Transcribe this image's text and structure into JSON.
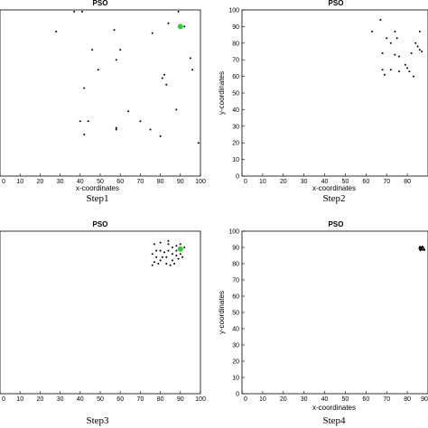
{
  "chart_data": [
    {
      "type": "scatter",
      "title": "PSO",
      "caption": "Step1",
      "xlabel": "x-coordinates",
      "ylabel": "",
      "xlim": [
        0,
        100
      ],
      "ylim": [
        0,
        100
      ],
      "xticks": [
        0,
        10,
        20,
        30,
        40,
        50,
        60,
        70,
        80,
        90,
        100
      ],
      "yticks": [],
      "grid": false,
      "series": [
        {
          "color": "#000000",
          "points": [
            [
              37,
              99
            ],
            [
              41,
              99
            ],
            [
              28,
              87
            ],
            [
              46,
              76
            ],
            [
              49,
              64
            ],
            [
              42,
              53
            ],
            [
              57,
              88
            ],
            [
              60,
              76
            ],
            [
              58,
              70
            ],
            [
              76,
              86
            ],
            [
              84,
              92
            ],
            [
              89,
              99
            ],
            [
              92,
              90
            ],
            [
              95,
              71
            ],
            [
              96,
              64
            ],
            [
              82,
              61
            ],
            [
              81,
              59
            ],
            [
              83,
              55
            ],
            [
              64,
              39
            ],
            [
              70,
              33
            ],
            [
              75,
              28
            ],
            [
              88,
              40
            ],
            [
              58,
              29
            ],
            [
              40,
              33
            ],
            [
              44,
              33
            ],
            [
              42,
              25
            ],
            [
              58,
              28
            ],
            [
              80,
              24
            ],
            [
              99,
              20
            ]
          ]
        },
        {
          "color": "#33cc33",
          "points": [
            [
              90,
              90
            ]
          ]
        }
      ]
    },
    {
      "type": "scatter",
      "title": "PSO",
      "caption": "Step2",
      "xlabel": "x-coordinates",
      "ylabel": "y-coordinates",
      "xlim": [
        0,
        90
      ],
      "ylim": [
        0,
        100
      ],
      "xticks": [
        0,
        10,
        20,
        30,
        40,
        50,
        60,
        70,
        80
      ],
      "yticks": [
        0,
        10,
        20,
        30,
        40,
        50,
        60,
        70,
        80,
        90,
        100
      ],
      "grid": false,
      "series": [
        {
          "color": "#000000",
          "points": [
            [
              63,
              87
            ],
            [
              67,
              94
            ],
            [
              70,
              83
            ],
            [
              72,
              80
            ],
            [
              74,
              87
            ],
            [
              75,
              83
            ],
            [
              68,
              74
            ],
            [
              68,
              64
            ],
            [
              69,
              61
            ],
            [
              72,
              64
            ],
            [
              74,
              73
            ],
            [
              76,
              72
            ],
            [
              76,
              63
            ],
            [
              79,
              67
            ],
            [
              80,
              65
            ],
            [
              81,
              63
            ],
            [
              83,
              60
            ],
            [
              82,
              74
            ],
            [
              85,
              78
            ],
            [
              86,
              76
            ],
            [
              87,
              75
            ],
            [
              86,
              87
            ],
            [
              84,
              80
            ]
          ]
        }
      ]
    },
    {
      "type": "scatter",
      "title": "PSO",
      "caption": "Step3",
      "xlabel": "",
      "ylabel": "",
      "xlim": [
        0,
        100
      ],
      "ylim": [
        0,
        100
      ],
      "xticks": [
        0,
        10,
        20,
        30,
        40,
        50,
        60,
        70,
        80,
        90,
        100
      ],
      "yticks": [],
      "grid": false,
      "series": [
        {
          "color": "#000000",
          "points": [
            [
              77,
              92
            ],
            [
              80,
              93
            ],
            [
              84,
              92
            ],
            [
              86,
              90
            ],
            [
              88,
              91
            ],
            [
              78,
              88
            ],
            [
              80,
              88
            ],
            [
              82,
              87
            ],
            [
              84,
              88
            ],
            [
              76,
              86
            ],
            [
              78,
              84
            ],
            [
              81,
              84
            ],
            [
              83,
              84
            ],
            [
              86,
              86
            ],
            [
              88,
              85
            ],
            [
              90,
              86
            ],
            [
              77,
              81
            ],
            [
              79,
              80
            ],
            [
              83,
              80
            ],
            [
              85,
              79
            ],
            [
              87,
              80
            ],
            [
              89,
              83
            ],
            [
              91,
              84
            ],
            [
              92,
              90
            ],
            [
              84,
              94
            ],
            [
              76,
              79
            ],
            [
              80,
              82
            ],
            [
              86,
              82
            ],
            [
              88,
              88
            ],
            [
              90,
              92
            ]
          ]
        },
        {
          "color": "#33cc33",
          "points": [
            [
              90,
              89
            ]
          ]
        }
      ]
    },
    {
      "type": "scatter",
      "title": "PSO",
      "caption": "Step4",
      "xlabel": "x-coordinates",
      "ylabel": "y-coordinates",
      "xlim": [
        0,
        90
      ],
      "ylim": [
        0,
        100
      ],
      "xticks": [
        0,
        10,
        20,
        30,
        40,
        50,
        60,
        70,
        80,
        90
      ],
      "yticks": [
        0,
        10,
        20,
        30,
        40,
        50,
        60,
        70,
        80,
        90,
        100
      ],
      "grid": false,
      "series": [
        {
          "color": "#000000",
          "points": [
            [
              86,
              89
            ],
            [
              86.5,
              90
            ],
            [
              87,
              89.5
            ],
            [
              87.5,
              88.5
            ],
            [
              86.3,
              88.2
            ],
            [
              87.2,
              90.5
            ],
            [
              88,
              89.2
            ],
            [
              86.8,
              88.8
            ],
            [
              87.6,
              90.2
            ],
            [
              85.8,
              89.6
            ],
            [
              88.3,
              88.4
            ],
            [
              86.1,
              90.4
            ]
          ]
        }
      ]
    }
  ]
}
